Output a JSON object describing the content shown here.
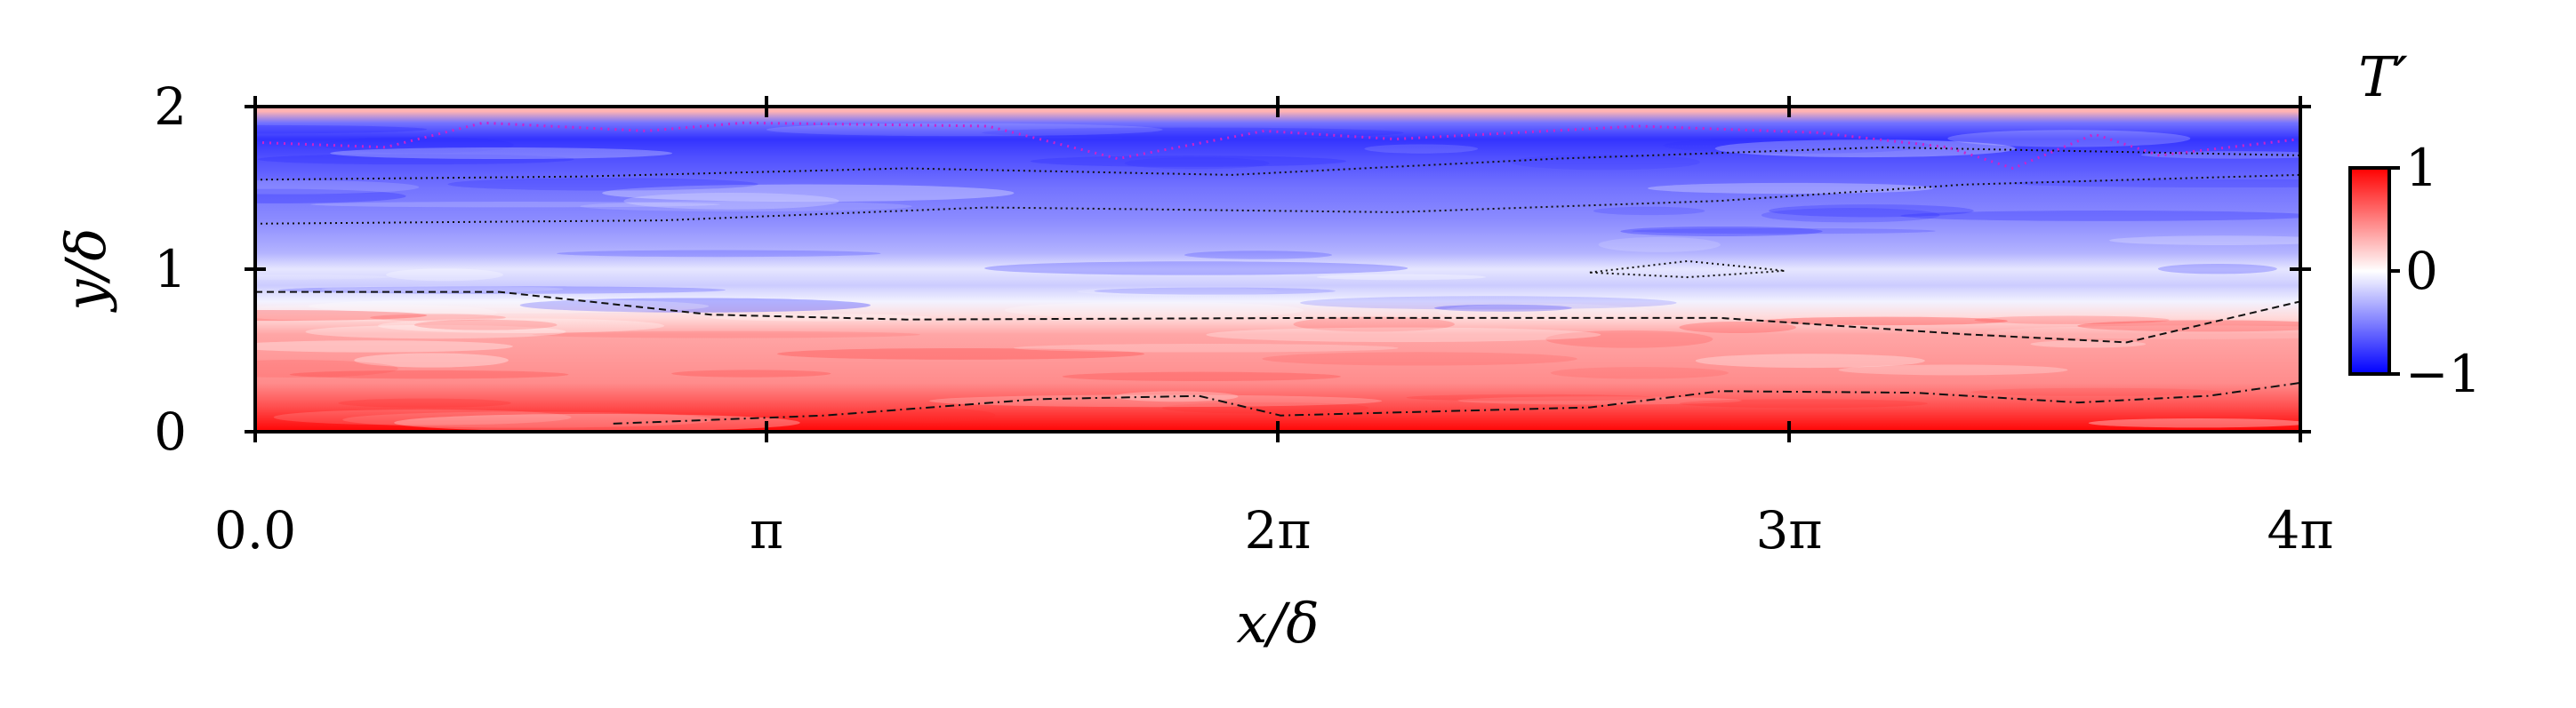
{
  "chart_data": {
    "type": "heatmap",
    "title": "",
    "xlabel": "x/δ",
    "ylabel": "y/δ",
    "xlim": [
      0,
      12.566
    ],
    "ylim": [
      0,
      2
    ],
    "xticks": [
      {
        "value": 0,
        "label": "0.0"
      },
      {
        "value": 3.1416,
        "label": "π"
      },
      {
        "value": 6.2832,
        "label": "2π"
      },
      {
        "value": 9.4248,
        "label": "3π"
      },
      {
        "value": 12.566,
        "label": "4π"
      }
    ],
    "yticks": [
      {
        "value": 0,
        "label": "0"
      },
      {
        "value": 1,
        "label": "1"
      },
      {
        "value": 2,
        "label": "2"
      }
    ],
    "colorbar": {
      "title": "T′",
      "range": [
        -1,
        1
      ],
      "ticks": [
        {
          "value": 1,
          "label": "1"
        },
        {
          "value": 0,
          "label": "0"
        },
        {
          "value": -1,
          "label": "−1"
        }
      ],
      "colormap": [
        "#0000ff",
        "#ffffff",
        "#ff0000"
      ]
    },
    "field_profile": [
      {
        "y": 0.02,
        "T": 0.95
      },
      {
        "y": 0.15,
        "T": 0.7
      },
      {
        "y": 0.3,
        "T": 0.45
      },
      {
        "y": 0.45,
        "T": 0.4
      },
      {
        "y": 0.6,
        "T": 0.35
      },
      {
        "y": 0.7,
        "T": 0.15
      },
      {
        "y": 0.8,
        "T": -0.05
      },
      {
        "y": 0.9,
        "T": -0.2
      },
      {
        "y": 1.0,
        "T": -0.1
      },
      {
        "y": 1.1,
        "T": -0.3
      },
      {
        "y": 1.3,
        "T": -0.45
      },
      {
        "y": 1.5,
        "T": -0.55
      },
      {
        "y": 1.7,
        "T": -0.7
      },
      {
        "y": 1.8,
        "T": -0.8
      },
      {
        "y": 1.9,
        "T": -0.55
      },
      {
        "y": 1.97,
        "T": 0.3
      }
    ],
    "contours": [
      {
        "level": "0",
        "style": "dashed",
        "points": [
          [
            0,
            0.86
          ],
          [
            1.5,
            0.86
          ],
          [
            2.8,
            0.72
          ],
          [
            4.0,
            0.69
          ],
          [
            6.5,
            0.7
          ],
          [
            9.0,
            0.7
          ],
          [
            10.5,
            0.6
          ],
          [
            11.5,
            0.55
          ],
          [
            12.56,
            0.8
          ]
        ]
      },
      {
        "level": "0.5",
        "style": "dash-dot",
        "points": [
          [
            2.2,
            0.05
          ],
          [
            3.5,
            0.1
          ],
          [
            4.8,
            0.2
          ],
          [
            5.8,
            0.22
          ],
          [
            6.3,
            0.1
          ],
          [
            8.2,
            0.15
          ],
          [
            9.0,
            0.25
          ],
          [
            10.2,
            0.24
          ],
          [
            11.2,
            0.18
          ],
          [
            12.0,
            0.22
          ],
          [
            12.56,
            0.3
          ]
        ]
      },
      {
        "level": "-0.5",
        "style": "dotted",
        "points": [
          [
            0,
            1.28
          ],
          [
            2.5,
            1.3
          ],
          [
            4.5,
            1.38
          ],
          [
            7.0,
            1.35
          ],
          [
            9.0,
            1.42
          ],
          [
            10.5,
            1.52
          ],
          [
            12.56,
            1.58
          ]
        ]
      },
      {
        "level": "-0.5",
        "style": "dotted",
        "points": [
          [
            0,
            1.55
          ],
          [
            2.0,
            1.57
          ],
          [
            4.0,
            1.62
          ],
          [
            6.0,
            1.58
          ],
          [
            8.0,
            1.68
          ],
          [
            10.0,
            1.75
          ],
          [
            12.56,
            1.7
          ]
        ]
      },
      {
        "level": "-0.75",
        "style": "dotted",
        "points": [
          [
            8.2,
            0.98
          ],
          [
            8.8,
            1.05
          ],
          [
            9.4,
            0.99
          ],
          [
            8.8,
            0.95
          ],
          [
            8.2,
            0.98
          ]
        ]
      },
      {
        "level": "boundary",
        "style": "magenta-dotted",
        "points": [
          [
            0,
            1.78
          ],
          [
            0.8,
            1.75
          ],
          [
            1.4,
            1.9
          ],
          [
            2.4,
            1.85
          ],
          [
            3.0,
            1.9
          ],
          [
            4.5,
            1.88
          ],
          [
            5.3,
            1.68
          ],
          [
            6.2,
            1.85
          ],
          [
            7.0,
            1.8
          ],
          [
            8.5,
            1.88
          ],
          [
            9.6,
            1.84
          ],
          [
            10.4,
            1.75
          ],
          [
            10.8,
            1.62
          ],
          [
            11.3,
            1.83
          ],
          [
            11.7,
            1.7
          ],
          [
            12.56,
            1.8
          ]
        ]
      }
    ]
  }
}
